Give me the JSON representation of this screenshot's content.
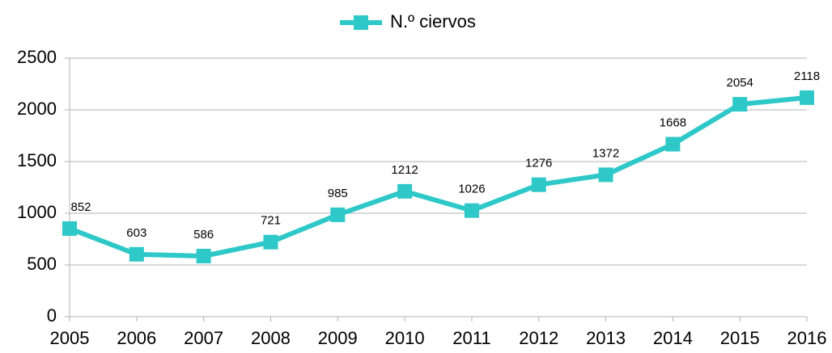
{
  "chart_data": {
    "type": "line",
    "categories": [
      "2005",
      "2006",
      "2007",
      "2008",
      "2009",
      "2010",
      "2011",
      "2012",
      "2013",
      "2014",
      "2015",
      "2016"
    ],
    "series": [
      {
        "name": "N.º ciervos",
        "color": "#2ec8c8",
        "values": [
          852,
          603,
          586,
          721,
          985,
          1212,
          1026,
          1276,
          1372,
          1668,
          2054,
          2118
        ]
      }
    ],
    "ylim": [
      0,
      2500
    ],
    "yticks": [
      0,
      500,
      1000,
      1500,
      2000,
      2500
    ],
    "grid": true,
    "legend": "top"
  }
}
